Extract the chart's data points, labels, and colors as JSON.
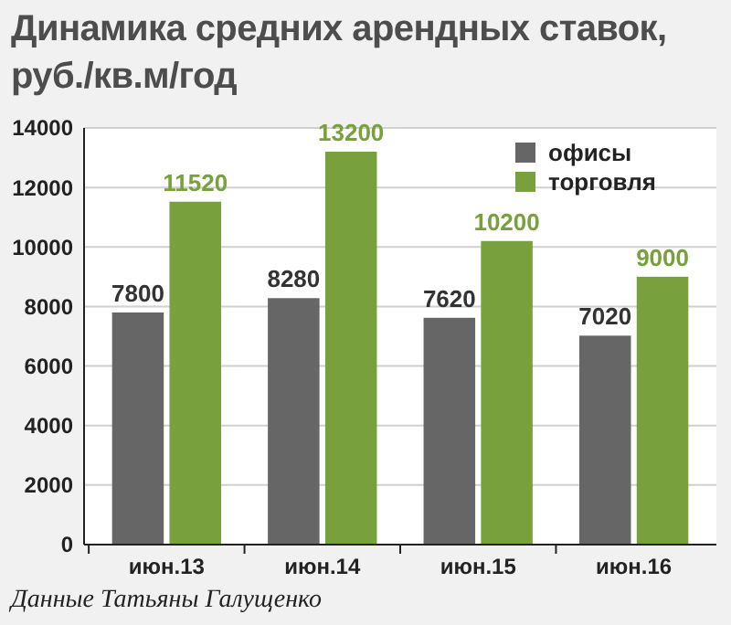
{
  "chart_data": {
    "type": "bar",
    "title": "Динамика средних арендных ставок, руб./кв.м/год",
    "categories": [
      "июн.13",
      "июн.14",
      "июн.15",
      "июн.16"
    ],
    "series": [
      {
        "name": "офисы",
        "color": "#666666",
        "values": [
          7800,
          8280,
          7620,
          7020
        ]
      },
      {
        "name": "торговля",
        "color": "#78a03c",
        "values": [
          11520,
          13200,
          10200,
          9000
        ]
      }
    ],
    "ylim": [
      0,
      14000
    ],
    "yticks": [
      0,
      2000,
      4000,
      6000,
      8000,
      10000,
      12000,
      14000
    ],
    "grid": "y",
    "legend": "top right",
    "data_labels": true,
    "annotations": [
      "Данные Татьяны Галущенко"
    ]
  }
}
